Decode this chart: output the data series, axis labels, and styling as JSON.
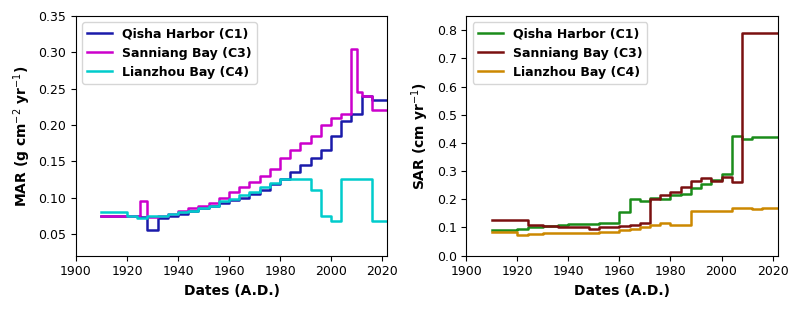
{
  "mar": {
    "C1_x": [
      1910,
      1925,
      1925,
      1928,
      1928,
      1932,
      1932,
      1936,
      1936,
      1940,
      1940,
      1944,
      1944,
      1948,
      1948,
      1952,
      1952,
      1956,
      1956,
      1960,
      1960,
      1964,
      1964,
      1968,
      1968,
      1972,
      1972,
      1976,
      1976,
      1980,
      1980,
      1984,
      1984,
      1988,
      1988,
      1992,
      1992,
      1996,
      1996,
      2000,
      2000,
      2004,
      2004,
      2008,
      2008,
      2012,
      2012,
      2016,
      2016,
      2022
    ],
    "C1_y": [
      0.075,
      0.075,
      0.073,
      0.073,
      0.055,
      0.055,
      0.072,
      0.072,
      0.075,
      0.075,
      0.078,
      0.078,
      0.082,
      0.082,
      0.085,
      0.085,
      0.088,
      0.088,
      0.092,
      0.092,
      0.096,
      0.096,
      0.1,
      0.1,
      0.105,
      0.105,
      0.11,
      0.11,
      0.118,
      0.118,
      0.125,
      0.125,
      0.135,
      0.135,
      0.145,
      0.145,
      0.155,
      0.155,
      0.165,
      0.165,
      0.185,
      0.185,
      0.205,
      0.205,
      0.215,
      0.215,
      0.24,
      0.24,
      0.235,
      0.235
    ],
    "C3_x": [
      1910,
      1925,
      1925,
      1928,
      1928,
      1932,
      1932,
      1936,
      1936,
      1940,
      1940,
      1944,
      1944,
      1948,
      1948,
      1952,
      1952,
      1956,
      1956,
      1960,
      1960,
      1964,
      1964,
      1968,
      1968,
      1972,
      1972,
      1976,
      1976,
      1980,
      1980,
      1984,
      1984,
      1988,
      1988,
      1992,
      1992,
      1996,
      1996,
      2000,
      2000,
      2004,
      2004,
      2008,
      2008,
      2010,
      2010,
      2012,
      2012,
      2016,
      2016,
      2022
    ],
    "C3_y": [
      0.075,
      0.075,
      0.095,
      0.095,
      0.073,
      0.073,
      0.075,
      0.075,
      0.078,
      0.078,
      0.082,
      0.082,
      0.085,
      0.085,
      0.088,
      0.088,
      0.093,
      0.093,
      0.1,
      0.1,
      0.107,
      0.107,
      0.115,
      0.115,
      0.122,
      0.122,
      0.13,
      0.13,
      0.14,
      0.14,
      0.155,
      0.155,
      0.165,
      0.165,
      0.175,
      0.175,
      0.185,
      0.185,
      0.2,
      0.2,
      0.21,
      0.21,
      0.215,
      0.215,
      0.305,
      0.305,
      0.245,
      0.245,
      0.24,
      0.24,
      0.22,
      0.22
    ],
    "C4_x": [
      1910,
      1920,
      1920,
      1924,
      1924,
      1928,
      1928,
      1932,
      1932,
      1936,
      1936,
      1940,
      1940,
      1944,
      1944,
      1948,
      1948,
      1952,
      1952,
      1956,
      1956,
      1960,
      1960,
      1964,
      1964,
      1968,
      1968,
      1972,
      1972,
      1976,
      1976,
      1980,
      1980,
      1984,
      1984,
      1988,
      1988,
      1992,
      1992,
      1996,
      1996,
      2000,
      2000,
      2004,
      2004,
      2016,
      2016,
      2022
    ],
    "C4_y": [
      0.08,
      0.08,
      0.075,
      0.075,
      0.072,
      0.072,
      0.074,
      0.074,
      0.075,
      0.075,
      0.077,
      0.077,
      0.08,
      0.08,
      0.082,
      0.082,
      0.085,
      0.085,
      0.088,
      0.088,
      0.095,
      0.095,
      0.098,
      0.098,
      0.103,
      0.103,
      0.108,
      0.108,
      0.115,
      0.115,
      0.12,
      0.12,
      0.125,
      0.125,
      0.125,
      0.125,
      0.125,
      0.125,
      0.11,
      0.11,
      0.075,
      0.075,
      0.068,
      0.068,
      0.125,
      0.125,
      0.068,
      0.068
    ],
    "C1_color": "#1a1aaa",
    "C3_color": "#cc00cc",
    "C4_color": "#00cccc",
    "ylabel": "MAR (g cm$^{-2}$ yr$^{-1}$)",
    "xlabel": "Dates (A.D.)",
    "ylim": [
      0.02,
      0.35
    ],
    "xlim": [
      1900,
      2022
    ],
    "yticks": [
      0.05,
      0.1,
      0.15,
      0.2,
      0.25,
      0.3,
      0.35
    ],
    "xticks": [
      1900,
      1920,
      1940,
      1960,
      1980,
      2000,
      2020
    ]
  },
  "sar": {
    "C1_x": [
      1910,
      1920,
      1920,
      1924,
      1924,
      1930,
      1930,
      1936,
      1936,
      1940,
      1940,
      1948,
      1948,
      1952,
      1952,
      1960,
      1960,
      1964,
      1964,
      1968,
      1968,
      1972,
      1972,
      1976,
      1976,
      1980,
      1980,
      1984,
      1984,
      1988,
      1988,
      1992,
      1992,
      1996,
      1996,
      2000,
      2000,
      2004,
      2004,
      2008,
      2008,
      2012,
      2012,
      2016,
      2016,
      2022
    ],
    "C1_y": [
      0.09,
      0.09,
      0.095,
      0.095,
      0.1,
      0.1,
      0.105,
      0.105,
      0.11,
      0.11,
      0.112,
      0.112,
      0.113,
      0.113,
      0.115,
      0.115,
      0.155,
      0.155,
      0.2,
      0.2,
      0.195,
      0.195,
      0.205,
      0.205,
      0.2,
      0.2,
      0.215,
      0.215,
      0.22,
      0.22,
      0.24,
      0.24,
      0.255,
      0.255,
      0.27,
      0.27,
      0.29,
      0.29,
      0.425,
      0.425,
      0.415,
      0.415,
      0.42,
      0.42,
      0.42,
      0.42
    ],
    "C3_x": [
      1910,
      1924,
      1924,
      1930,
      1930,
      1936,
      1936,
      1940,
      1940,
      1948,
      1948,
      1952,
      1952,
      1960,
      1960,
      1964,
      1964,
      1968,
      1968,
      1972,
      1972,
      1976,
      1976,
      1980,
      1980,
      1984,
      1984,
      1988,
      1988,
      1992,
      1992,
      1996,
      1996,
      2000,
      2000,
      2004,
      2004,
      2008,
      2008,
      2012,
      2012,
      2016,
      2016,
      2022
    ],
    "C3_y": [
      0.125,
      0.125,
      0.11,
      0.11,
      0.105,
      0.105,
      0.1,
      0.1,
      0.1,
      0.1,
      0.095,
      0.095,
      0.1,
      0.1,
      0.105,
      0.105,
      0.11,
      0.11,
      0.115,
      0.115,
      0.2,
      0.2,
      0.215,
      0.215,
      0.225,
      0.225,
      0.245,
      0.245,
      0.265,
      0.265,
      0.275,
      0.275,
      0.265,
      0.265,
      0.28,
      0.28,
      0.26,
      0.26,
      0.79,
      0.79,
      0.79,
      0.79,
      0.79,
      0.79
    ],
    "C4_x": [
      1910,
      1920,
      1920,
      1924,
      1924,
      1930,
      1930,
      1936,
      1936,
      1952,
      1952,
      1960,
      1960,
      1964,
      1964,
      1968,
      1968,
      1972,
      1972,
      1976,
      1976,
      1980,
      1980,
      1988,
      1988,
      1996,
      1996,
      2004,
      2004,
      2012,
      2012,
      2016,
      2016,
      2022
    ],
    "C4_y": [
      0.085,
      0.085,
      0.072,
      0.072,
      0.075,
      0.075,
      0.08,
      0.08,
      0.082,
      0.082,
      0.085,
      0.085,
      0.09,
      0.09,
      0.095,
      0.095,
      0.1,
      0.1,
      0.11,
      0.11,
      0.115,
      0.115,
      0.11,
      0.11,
      0.16,
      0.16,
      0.16,
      0.16,
      0.17,
      0.17,
      0.165,
      0.165,
      0.17,
      0.17
    ],
    "C1_color": "#1a8c1a",
    "C3_color": "#7a1010",
    "C4_color": "#cc8800",
    "ylabel": "SAR (cm yr$^{-1}$)",
    "xlabel": "Dates (A.D.)",
    "ylim": [
      0.0,
      0.85
    ],
    "xlim": [
      1900,
      2022
    ],
    "yticks": [
      0.0,
      0.1,
      0.2,
      0.3,
      0.4,
      0.5,
      0.6,
      0.7,
      0.8
    ],
    "xticks": [
      1900,
      1920,
      1940,
      1960,
      1980,
      2000,
      2020
    ]
  },
  "legend_labels": [
    "Qisha Harbor (C1)",
    "Sanniang Bay (C3)",
    "Lianzhou Bay (C4)"
  ],
  "legend_fontsize": 9,
  "axis_label_fontsize": 10,
  "tick_fontsize": 9,
  "linewidth": 1.8
}
